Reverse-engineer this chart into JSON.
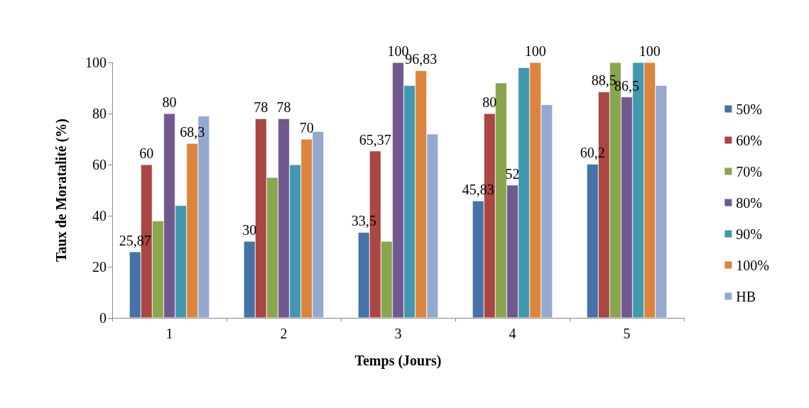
{
  "chart_data": {
    "type": "bar",
    "xlabel": "Temps (Jours)",
    "ylabel": "Taux de Moratalité (%)",
    "categories": [
      "1",
      "2",
      "3",
      "4",
      "5"
    ],
    "series": [
      {
        "name": "50%",
        "color": "#4572a7",
        "values": [
          25.87,
          30,
          33.5,
          45.83,
          60.2
        ],
        "value_labels": [
          "25,87",
          "30",
          "33,5",
          "45,83",
          "60,2"
        ]
      },
      {
        "name": "60%",
        "color": "#aa4643",
        "values": [
          60,
          78,
          65.37,
          80,
          88.5
        ],
        "value_labels": [
          "60",
          "78",
          "65,37",
          "80",
          "88,5"
        ]
      },
      {
        "name": "70%",
        "color": "#89a54e",
        "values": [
          38,
          55,
          30,
          92,
          100
        ]
      },
      {
        "name": "80%",
        "color": "#71588f",
        "values": [
          80,
          78,
          100,
          52,
          86.5
        ],
        "value_labels": [
          "80",
          "78",
          "100",
          "52",
          "86,5"
        ]
      },
      {
        "name": "90%",
        "color": "#4198af",
        "values": [
          44,
          60,
          91,
          98,
          100
        ]
      },
      {
        "name": "100%",
        "color": "#db843d",
        "values": [
          68.3,
          70,
          96.83,
          100,
          100
        ],
        "value_labels": [
          "68,3",
          "70",
          "96,83",
          "100",
          "100"
        ]
      },
      {
        "name": "HB",
        "color": "#93a9cf",
        "values": [
          79,
          73,
          72,
          83.5,
          91
        ]
      }
    ],
    "ylim": [
      0,
      100
    ],
    "yticks": [
      0,
      20,
      40,
      60,
      80,
      100
    ],
    "grid": false,
    "legend": "right"
  }
}
